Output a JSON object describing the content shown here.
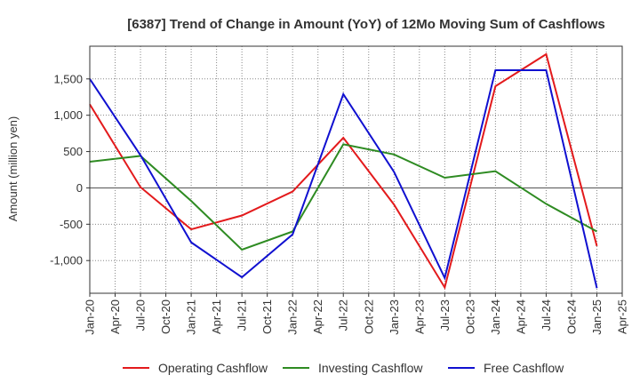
{
  "chart_data": {
    "type": "line",
    "title": "[6387]  Trend of Change in Amount (YoY) of 12Mo Moving Sum of Cashflows",
    "xlabel": "",
    "ylabel": "Amount (million yen)",
    "ylim": [
      -1450,
      1950
    ],
    "yticks": [
      1500,
      1000,
      500,
      0,
      -500,
      -1000
    ],
    "ytick_labels": [
      "1,500",
      "1,000",
      "500",
      "0",
      "-500",
      "-1,000"
    ],
    "categories": [
      "Jan-20",
      "Apr-20",
      "Jul-20",
      "Oct-20",
      "Jan-21",
      "Apr-21",
      "Jul-21",
      "Oct-21",
      "Jan-22",
      "Apr-22",
      "Jul-22",
      "Oct-22",
      "Jan-23",
      "Apr-23",
      "Jul-23",
      "Oct-23",
      "Jan-24",
      "Apr-24",
      "Jul-24",
      "Oct-24",
      "Jan-25",
      "Apr-25"
    ],
    "grid": true,
    "legend_position": "bottom",
    "series": [
      {
        "name": "Operating Cashflow",
        "color": "#e31a1c",
        "points": [
          [
            0,
            1150
          ],
          [
            2,
            10
          ],
          [
            4,
            -570
          ],
          [
            6,
            -380
          ],
          [
            8,
            -50
          ],
          [
            10,
            690
          ],
          [
            12,
            -230
          ],
          [
            14,
            -1370
          ],
          [
            16,
            1400
          ],
          [
            18,
            1840
          ],
          [
            20,
            -800
          ]
        ]
      },
      {
        "name": "Investing Cashflow",
        "color": "#2e8b22",
        "points": [
          [
            0,
            360
          ],
          [
            2,
            440
          ],
          [
            4,
            -180
          ],
          [
            6,
            -850
          ],
          [
            8,
            -600
          ],
          [
            10,
            600
          ],
          [
            12,
            460
          ],
          [
            14,
            140
          ],
          [
            16,
            230
          ],
          [
            18,
            -220
          ],
          [
            20,
            -600
          ]
        ]
      },
      {
        "name": "Free Cashflow",
        "color": "#1010d0",
        "points": [
          [
            0,
            1500
          ],
          [
            2,
            450
          ],
          [
            4,
            -750
          ],
          [
            6,
            -1230
          ],
          [
            8,
            -640
          ],
          [
            10,
            1290
          ],
          [
            12,
            220
          ],
          [
            14,
            -1240
          ],
          [
            16,
            1620
          ],
          [
            18,
            1620
          ],
          [
            20,
            -1380
          ]
        ]
      }
    ]
  }
}
